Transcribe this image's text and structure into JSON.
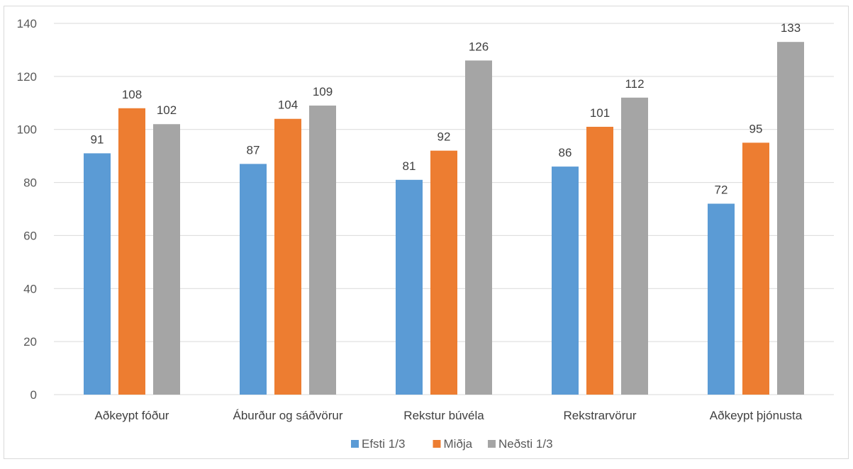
{
  "chart_data": {
    "type": "bar",
    "categories": [
      "Aðkeypt fóður",
      "Áburður og sáðvörur",
      "Rekstur búvéla",
      "Rekstrarvörur",
      "Aðkeypt þjónusta"
    ],
    "series": [
      {
        "name": "Efsti 1/3",
        "color": "#5b9bd5",
        "values": [
          91,
          87,
          81,
          86,
          72
        ]
      },
      {
        "name": "Miðja",
        "color": "#ed7d31",
        "values": [
          108,
          104,
          92,
          101,
          95
        ]
      },
      {
        "name": "Neðsti 1/3",
        "color": "#a5a5a5",
        "values": [
          102,
          109,
          126,
          112,
          133
        ]
      }
    ],
    "ylim": [
      0,
      140
    ],
    "yticks": [
      0,
      20,
      40,
      60,
      80,
      100,
      120,
      140
    ],
    "grid": true,
    "legend_position": "bottom",
    "gridline_color": "#d9d9d9"
  }
}
